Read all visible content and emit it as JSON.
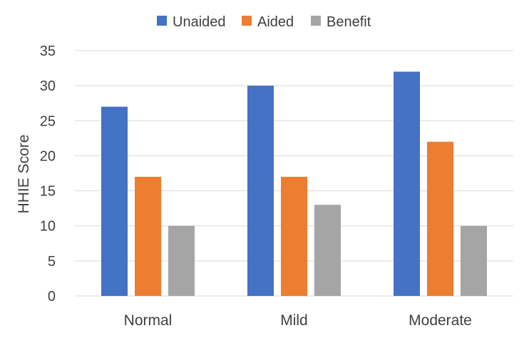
{
  "chart_data": {
    "type": "bar",
    "title": "",
    "xlabel": "",
    "ylabel": "HHIE  Score",
    "categories": [
      "Normal",
      "Mild",
      "Moderate"
    ],
    "series": [
      {
        "name": "Unaided",
        "values": [
          27,
          30,
          32
        ],
        "color": "#4472C4"
      },
      {
        "name": "Aided",
        "values": [
          17,
          17,
          22
        ],
        "color": "#ED7D31"
      },
      {
        "name": "Benefit",
        "values": [
          10,
          13,
          10
        ],
        "color": "#A5A5A5"
      }
    ],
    "ylim": [
      0,
      35
    ],
    "yticks": [
      0,
      5,
      10,
      15,
      20,
      25,
      30,
      35
    ],
    "grid": true,
    "legend_position": "top-center"
  }
}
